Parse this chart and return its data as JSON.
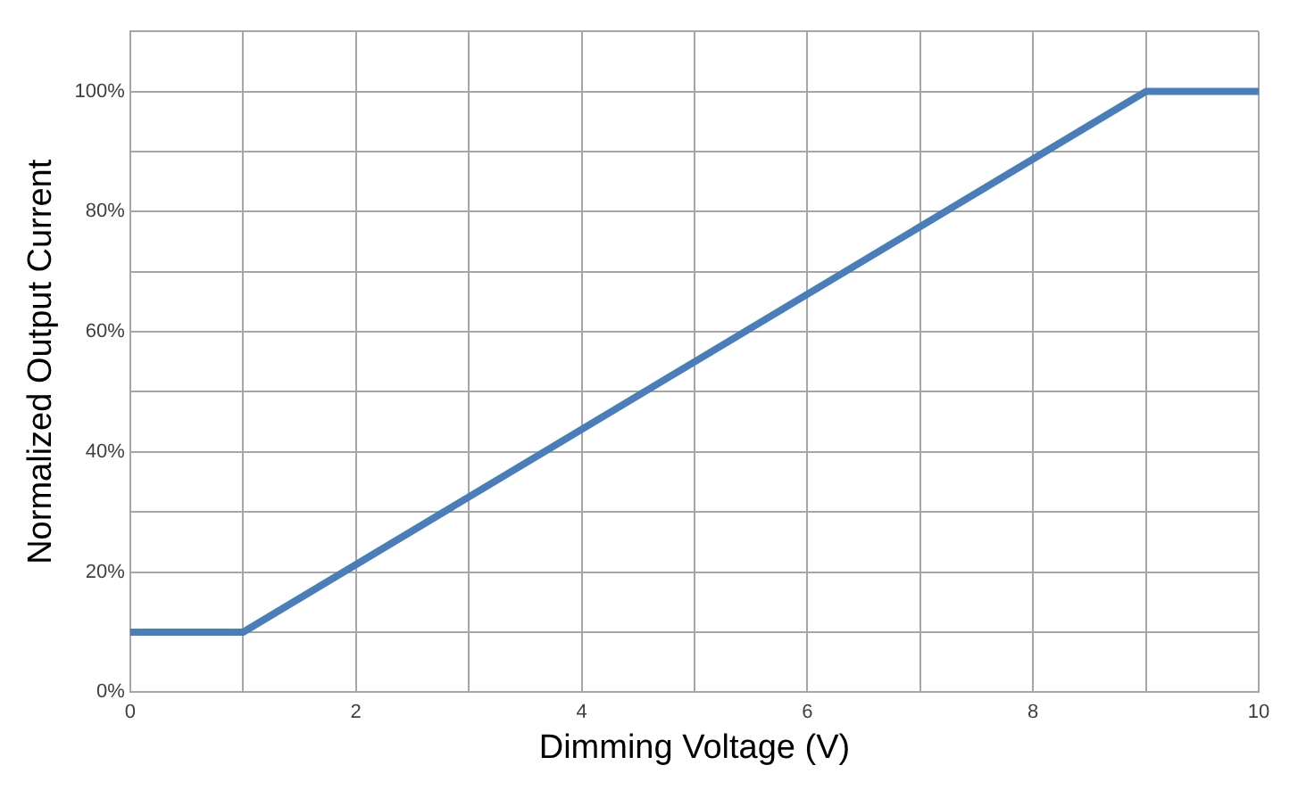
{
  "chart_data": {
    "type": "line",
    "xlabel": "Dimming Voltage (V)",
    "ylabel": "Normalized Output Current",
    "x": [
      0,
      1,
      9,
      10
    ],
    "series": [
      {
        "color": "#4a7ebb",
        "values": [
          10,
          10,
          100,
          100
        ]
      }
    ],
    "xlim": [
      0,
      10
    ],
    "xticks": [
      0,
      {
        "value": 1,
        "label": null
      },
      2,
      {
        "value": 3,
        "label": null
      },
      4,
      {
        "value": 5,
        "label": null
      },
      6,
      {
        "value": 7,
        "label": null
      },
      8,
      {
        "value": 9,
        "label": null
      },
      10
    ],
    "ylim": [
      0,
      110
    ],
    "yticks": [
      {
        "value": 0,
        "label": "0%"
      },
      {
        "value": 10,
        "label": null
      },
      {
        "value": 20,
        "label": "20%"
      },
      {
        "value": 30,
        "label": null
      },
      {
        "value": 40,
        "label": "40%"
      },
      {
        "value": 50,
        "label": null
      },
      {
        "value": 60,
        "label": "60%"
      },
      {
        "value": 70,
        "label": null
      },
      {
        "value": 80,
        "label": "80%"
      },
      {
        "value": 90,
        "label": null
      },
      {
        "value": 100,
        "label": "100%"
      },
      {
        "value": 110,
        "label": null
      }
    ],
    "grid": true,
    "legend": false,
    "marker": "none",
    "line_style": "solid"
  }
}
